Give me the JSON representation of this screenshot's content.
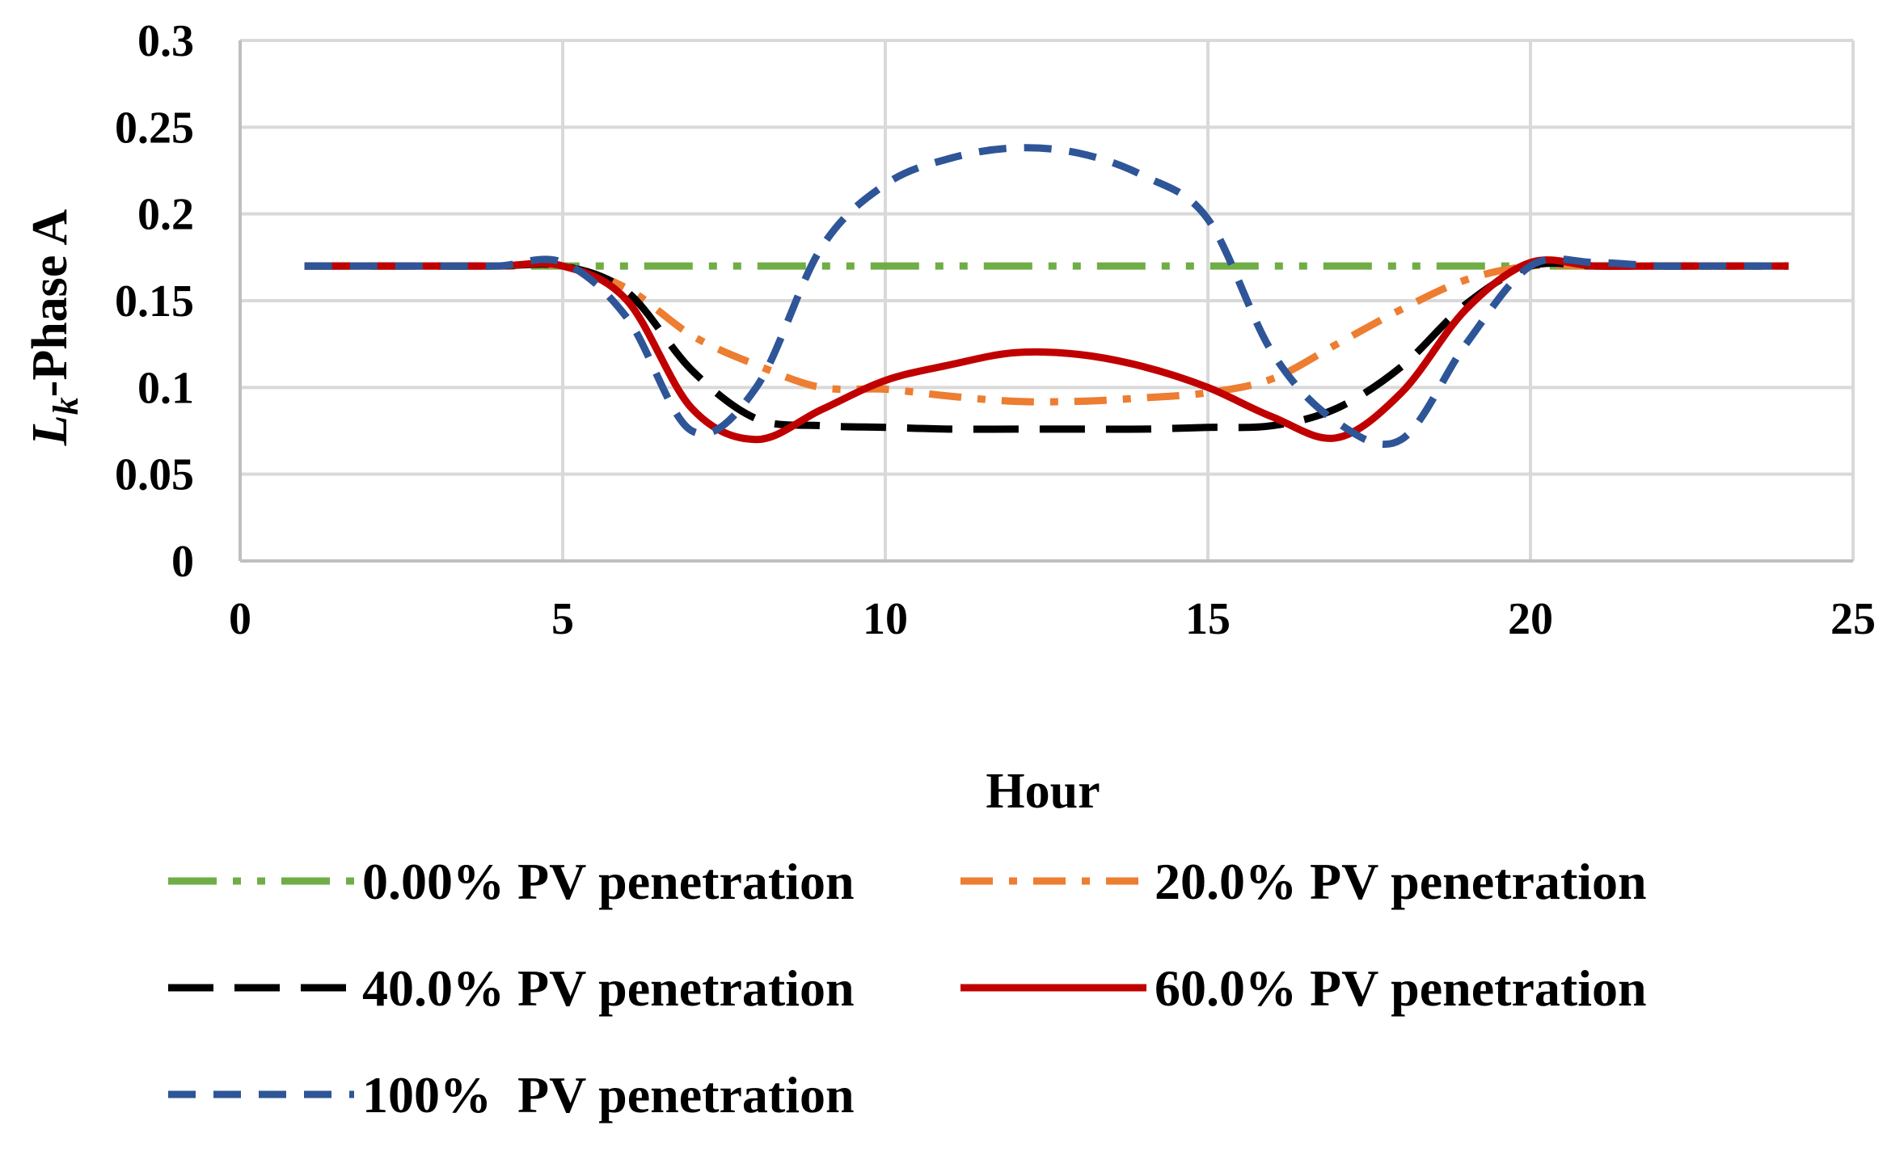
{
  "chart_data": {
    "type": "line",
    "title": "",
    "xlabel": "Hour",
    "ylabel_main": "L",
    "ylabel_sub": "k",
    "ylabel_rest": "-Phase A",
    "xlim": [
      0,
      25
    ],
    "ylim": [
      0,
      0.3
    ],
    "x_ticks": [
      0,
      5,
      10,
      15,
      20,
      25
    ],
    "x_tick_labels": [
      "0",
      "5",
      "10",
      "15",
      "20",
      "25"
    ],
    "y_ticks": [
      0,
      0.05,
      0.1,
      0.15,
      0.2,
      0.25,
      0.3
    ],
    "y_tick_labels": [
      "0",
      "0.05",
      "0.1",
      "0.15",
      "0.2",
      "0.25",
      "0.3"
    ],
    "grid": true,
    "legend_position": "bottom",
    "x": [
      1,
      2,
      3,
      4,
      5,
      6,
      7,
      8,
      9,
      10,
      11,
      12,
      13,
      14,
      15,
      16,
      17,
      18,
      19,
      20,
      21,
      22,
      23,
      24
    ],
    "series": [
      {
        "name": "0.00% PV penetration",
        "color": "#70ad47",
        "style": "long-dash-dot-dot",
        "values": [
          0.17,
          0.17,
          0.17,
          0.17,
          0.17,
          0.17,
          0.17,
          0.17,
          0.17,
          0.17,
          0.17,
          0.17,
          0.17,
          0.17,
          0.17,
          0.17,
          0.17,
          0.17,
          0.17,
          0.17,
          0.17,
          0.17,
          0.17,
          0.17
        ]
      },
      {
        "name": "20.0% PV penetration",
        "color": "#ed7d31",
        "style": "dash-dot",
        "values": [
          0.17,
          0.17,
          0.17,
          0.17,
          0.17,
          0.157,
          0.13,
          0.113,
          0.1,
          0.099,
          0.095,
          0.092,
          0.092,
          0.094,
          0.097,
          0.105,
          0.125,
          0.145,
          0.162,
          0.17,
          0.17,
          0.17,
          0.17,
          0.17
        ]
      },
      {
        "name": "40.0% PV penetration",
        "color": "#000000",
        "style": "long-dash",
        "values": [
          0.17,
          0.17,
          0.17,
          0.17,
          0.17,
          0.155,
          0.11,
          0.082,
          0.078,
          0.077,
          0.076,
          0.076,
          0.076,
          0.076,
          0.077,
          0.078,
          0.088,
          0.112,
          0.148,
          0.17,
          0.17,
          0.17,
          0.17,
          0.17
        ]
      },
      {
        "name": "60.0% PV penetration",
        "color": "#c00000",
        "style": "solid",
        "values": [
          0.17,
          0.17,
          0.17,
          0.17,
          0.17,
          0.15,
          0.088,
          0.07,
          0.087,
          0.104,
          0.113,
          0.12,
          0.119,
          0.112,
          0.1,
          0.083,
          0.071,
          0.097,
          0.145,
          0.172,
          0.17,
          0.17,
          0.17,
          0.17
        ]
      },
      {
        "name": "100%  PV penetration",
        "color": "#2e5597",
        "style": "dash",
        "values": [
          0.17,
          0.17,
          0.17,
          0.17,
          0.172,
          0.14,
          0.075,
          0.1,
          0.18,
          0.217,
          0.232,
          0.238,
          0.235,
          0.222,
          0.197,
          0.12,
          0.08,
          0.07,
          0.125,
          0.17,
          0.172,
          0.17,
          0.17,
          0.17
        ]
      }
    ]
  }
}
